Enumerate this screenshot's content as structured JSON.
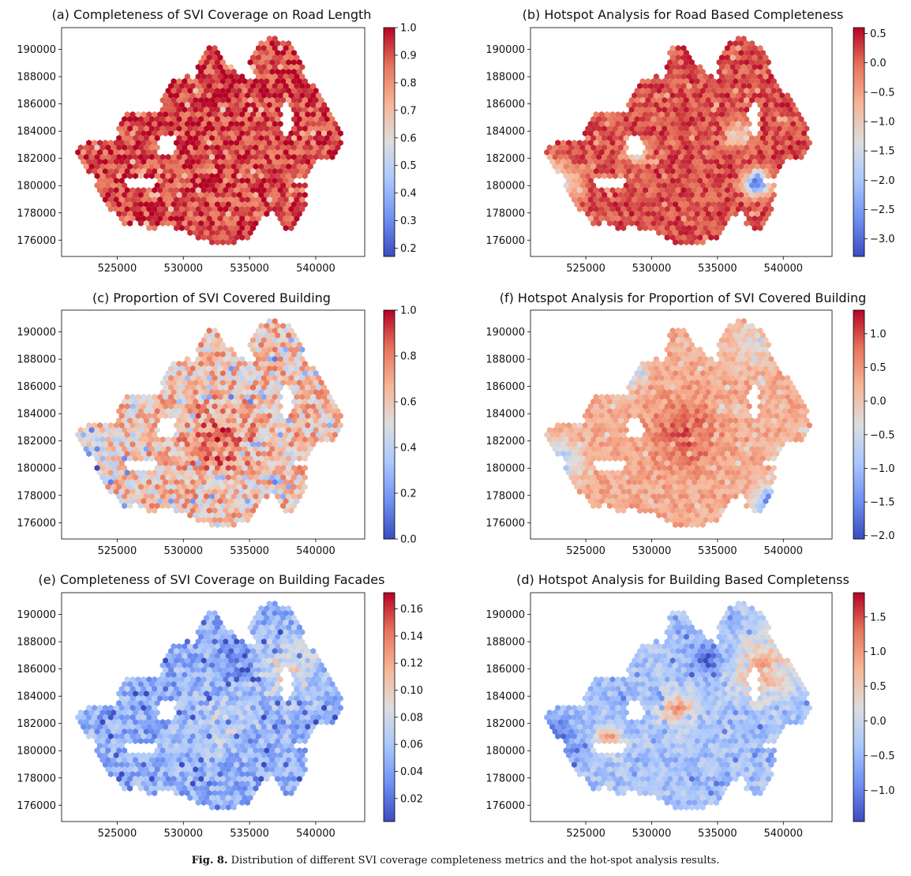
{
  "caption": {
    "label": "Fig. 8.",
    "text": "Distribution of different SVI coverage completeness metrics and the hot-spot analysis results."
  },
  "colormap": {
    "name": "coolwarm",
    "stops": [
      "#3b4cc0",
      "#6f91f3",
      "#aac7fd",
      "#dddddd",
      "#f7b597",
      "#e7755b",
      "#b40426"
    ]
  },
  "map_outline": [
    [
      521800,
      182600
    ],
    [
      522600,
      183200
    ],
    [
      524800,
      183400
    ],
    [
      525400,
      185300
    ],
    [
      528000,
      185400
    ],
    [
      529000,
      187600
    ],
    [
      530500,
      188200
    ],
    [
      531700,
      190300
    ],
    [
      532600,
      190400
    ],
    [
      533000,
      189300
    ],
    [
      534000,
      188500
    ],
    [
      535500,
      187500
    ],
    [
      534900,
      188800
    ],
    [
      535800,
      190700
    ],
    [
      537100,
      190900
    ],
    [
      538500,
      190200
    ],
    [
      539200,
      188200
    ],
    [
      540000,
      187100
    ],
    [
      540900,
      185900
    ],
    [
      541900,
      184400
    ],
    [
      542000,
      183000
    ],
    [
      541300,
      181900
    ],
    [
      540200,
      182000
    ],
    [
      539600,
      181200
    ],
    [
      539300,
      180700
    ],
    [
      539400,
      179000
    ],
    [
      538800,
      177300
    ],
    [
      537900,
      176600
    ],
    [
      537200,
      177200
    ],
    [
      536900,
      178200
    ],
    [
      535900,
      177500
    ],
    [
      535000,
      176200
    ],
    [
      533700,
      175700
    ],
    [
      532200,
      175600
    ],
    [
      531300,
      176100
    ],
    [
      530500,
      176400
    ],
    [
      529600,
      176800
    ],
    [
      528400,
      177000
    ],
    [
      527500,
      176700
    ],
    [
      526500,
      177300
    ],
    [
      525400,
      177100
    ],
    [
      524800,
      178000
    ],
    [
      523700,
      179000
    ],
    [
      523300,
      180500
    ],
    [
      522500,
      181500
    ]
  ],
  "chart_data": [
    {
      "type": "heatmap",
      "panel": "a",
      "title": "(a) Completeness of SVI Coverage on Road Length",
      "xlim": [
        520800,
        543700
      ],
      "ylim": [
        174800,
        191600
      ],
      "xticks": [
        525000,
        530000,
        535000,
        540000
      ],
      "yticks": [
        176000,
        178000,
        180000,
        182000,
        184000,
        186000,
        188000,
        190000
      ],
      "colorbar": {
        "min": 0.17,
        "max": 1.0,
        "ticks": [
          0.2,
          0.3,
          0.4,
          0.5,
          0.6,
          0.7,
          0.8,
          0.9,
          1.0
        ],
        "tick_labels": [
          "0.2",
          "0.3",
          "0.4",
          "0.5",
          "0.6",
          "0.7",
          "0.8",
          "0.9",
          "1.0"
        ]
      },
      "field": {
        "base": 0.93,
        "variation": 0.12,
        "hotspots": []
      },
      "grid": false
    },
    {
      "type": "heatmap",
      "panel": "b",
      "title": "(b) Hotspot Analysis for Road Based Completeness",
      "xlim": [
        520800,
        543700
      ],
      "ylim": [
        174800,
        191600
      ],
      "xticks": [
        525000,
        530000,
        535000,
        540000
      ],
      "yticks": [
        176000,
        178000,
        180000,
        182000,
        184000,
        186000,
        188000,
        190000
      ],
      "colorbar": {
        "min": -3.3,
        "max": 0.6,
        "ticks": [
          0.5,
          0.0,
          -0.5,
          -1.0,
          -1.5,
          -2.0,
          -2.5,
          -3.0
        ],
        "tick_labels": [
          "0.5",
          "0.0",
          "−0.5",
          "−1.0",
          "−1.5",
          "−2.0",
          "−2.5",
          "−3.0"
        ]
      },
      "field": {
        "base": 0.2,
        "variation": 0.35,
        "hotspots": [
          {
            "x": 522800,
            "y": 180000,
            "value": -1.6,
            "r": 1600
          },
          {
            "x": 528800,
            "y": 182500,
            "value": -1.2,
            "r": 900
          },
          {
            "x": 538000,
            "y": 180200,
            "value": -3.0,
            "r": 900
          },
          {
            "x": 536500,
            "y": 183700,
            "value": -1.2,
            "r": 900
          }
        ]
      },
      "grid": false
    },
    {
      "type": "heatmap",
      "panel": "c",
      "title": "(c) Proportion of SVI Covered Building",
      "xlim": [
        520800,
        543700
      ],
      "ylim": [
        174800,
        191600
      ],
      "xticks": [
        525000,
        530000,
        535000,
        540000
      ],
      "yticks": [
        176000,
        178000,
        180000,
        182000,
        184000,
        186000,
        188000,
        190000
      ],
      "colorbar": {
        "min": 0.0,
        "max": 1.0,
        "ticks": [
          0.0,
          0.2,
          0.4,
          0.6,
          0.8,
          1.0
        ],
        "tick_labels": [
          "0.0",
          "0.2",
          "0.4",
          "0.6",
          "0.8",
          "1.0"
        ]
      },
      "field": {
        "base": 0.62,
        "variation": 0.22,
        "hotspots": [
          {
            "x": 532500,
            "y": 182000,
            "value": 0.82,
            "r": 2500
          },
          {
            "x": 522800,
            "y": 180500,
            "value": 0.35,
            "r": 1800
          }
        ]
      },
      "grid": false
    },
    {
      "type": "heatmap",
      "panel": "f",
      "title": "(f) Hotspot Analysis for Proportion of SVI Covered Building",
      "xlim": [
        520800,
        543700
      ],
      "ylim": [
        174800,
        191600
      ],
      "xticks": [
        525000,
        530000,
        535000,
        540000
      ],
      "yticks": [
        176000,
        178000,
        180000,
        182000,
        184000,
        186000,
        188000,
        190000
      ],
      "colorbar": {
        "min": -2.05,
        "max": 1.35,
        "ticks": [
          1.0,
          0.5,
          0.0,
          -0.5,
          -1.0,
          -1.5,
          -2.0
        ],
        "tick_labels": [
          "1.0",
          "0.5",
          "0.0",
          "−0.5",
          "−1.0",
          "−1.5",
          "−2.0"
        ]
      },
      "field": {
        "base": 0.3,
        "variation": 0.3,
        "hotspots": [
          {
            "x": 532500,
            "y": 182500,
            "value": 0.9,
            "r": 2600
          },
          {
            "x": 527800,
            "y": 187200,
            "value": -1.7,
            "r": 1200
          },
          {
            "x": 522800,
            "y": 180500,
            "value": -1.0,
            "r": 1600
          },
          {
            "x": 539000,
            "y": 177500,
            "value": -1.5,
            "r": 1200
          },
          {
            "x": 537500,
            "y": 189000,
            "value": -0.3,
            "r": 1500
          }
        ]
      },
      "grid": false
    },
    {
      "type": "heatmap",
      "panel": "e",
      "title": "(e) Completeness of SVI Coverage on Building Facades",
      "xlim": [
        520800,
        543700
      ],
      "ylim": [
        174800,
        191600
      ],
      "xticks": [
        525000,
        530000,
        535000,
        540000
      ],
      "yticks": [
        176000,
        178000,
        180000,
        182000,
        184000,
        186000,
        188000,
        190000
      ],
      "colorbar": {
        "min": 0.003,
        "max": 0.172,
        "ticks": [
          0.02,
          0.04,
          0.06,
          0.08,
          0.1,
          0.12,
          0.14,
          0.16
        ],
        "tick_labels": [
          "0.02",
          "0.04",
          "0.06",
          "0.08",
          "0.10",
          "0.12",
          "0.14",
          "0.16"
        ]
      },
      "field": {
        "base": 0.05,
        "variation": 0.025,
        "hotspots": [
          {
            "x": 538000,
            "y": 186000,
            "value": 0.09,
            "r": 2200
          },
          {
            "x": 533000,
            "y": 182000,
            "value": 0.075,
            "r": 2000
          },
          {
            "x": 533800,
            "y": 186600,
            "value": 0.03,
            "r": 1500
          }
        ]
      },
      "grid": false
    },
    {
      "type": "heatmap",
      "panel": "d",
      "title": "(d) Hotspot Analysis for Building Based Completenss",
      "xlim": [
        520800,
        543700
      ],
      "ylim": [
        174800,
        191600
      ],
      "xticks": [
        525000,
        530000,
        535000,
        540000
      ],
      "yticks": [
        176000,
        178000,
        180000,
        182000,
        184000,
        186000,
        188000,
        190000
      ],
      "colorbar": {
        "min": -1.45,
        "max": 1.85,
        "ticks": [
          1.5,
          1.0,
          0.5,
          0.0,
          -0.5,
          -1.0
        ],
        "tick_labels": [
          "1.5",
          "1.0",
          "0.5",
          "0.0",
          "−0.5",
          "−1.0"
        ]
      },
      "field": {
        "base": -0.35,
        "variation": 0.35,
        "hotspots": [
          {
            "x": 538500,
            "y": 186000,
            "value": 0.8,
            "r": 2300
          },
          {
            "x": 532000,
            "y": 183000,
            "value": 1.0,
            "r": 1200
          },
          {
            "x": 534200,
            "y": 186800,
            "value": -1.3,
            "r": 1300
          },
          {
            "x": 522800,
            "y": 180800,
            "value": -1.3,
            "r": 1400
          },
          {
            "x": 526800,
            "y": 180800,
            "value": 0.9,
            "r": 1000
          }
        ]
      },
      "grid": false
    }
  ]
}
